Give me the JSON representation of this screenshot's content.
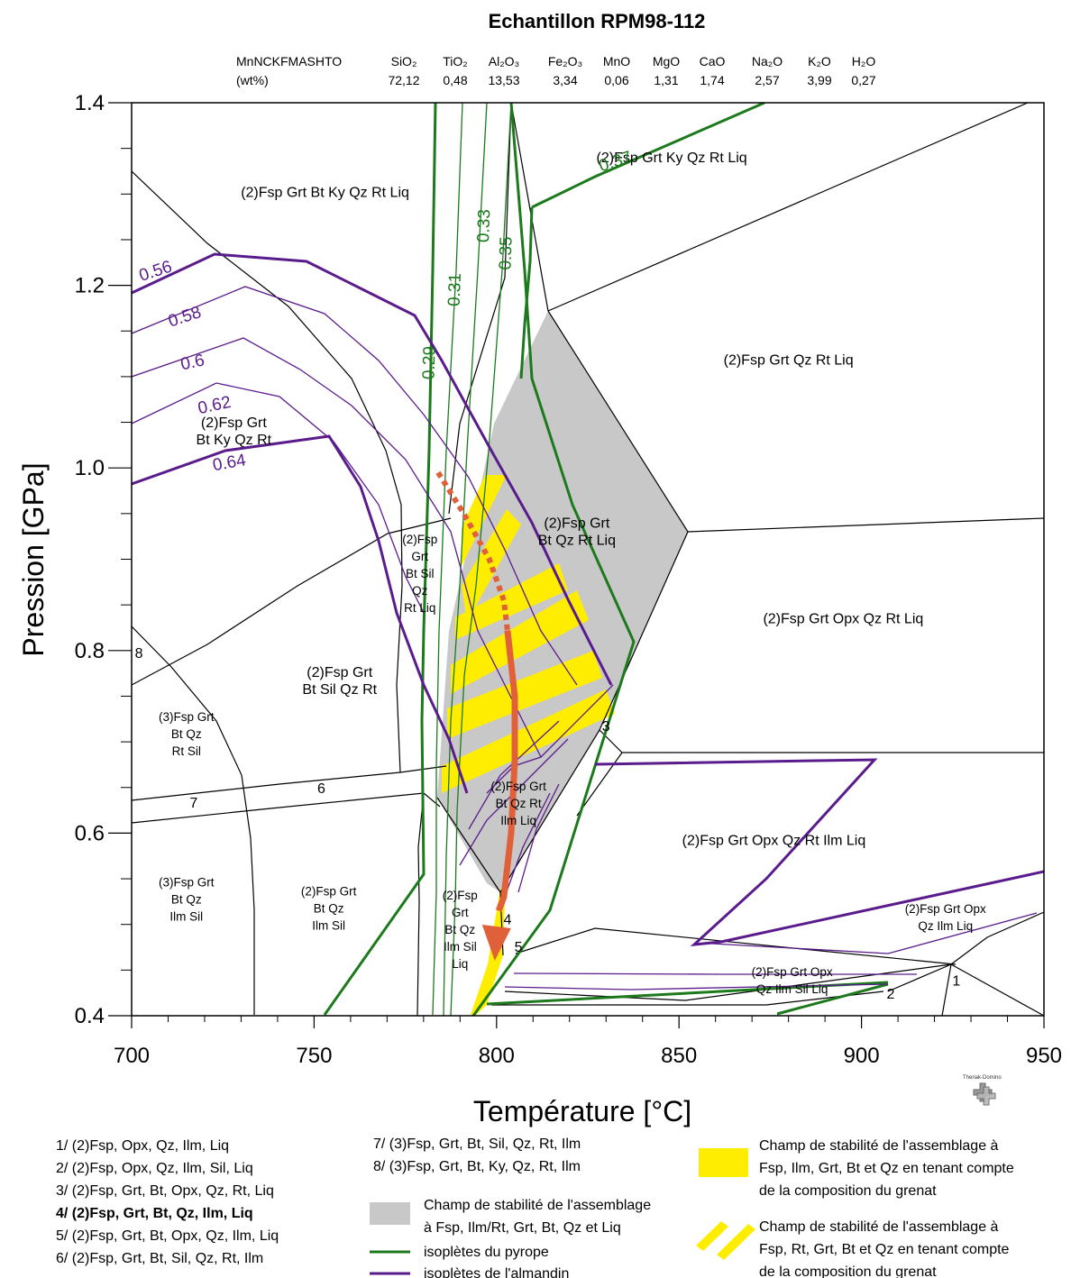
{
  "chart_data": {
    "type": "phase-diagram",
    "title": "Echantillon RPM98-112",
    "composition": {
      "system": "MnNCKFMASHTO",
      "unit": "(wt%)",
      "oxides": [
        {
          "name": "SiO₂",
          "value": "72,12"
        },
        {
          "name": "TiO₂",
          "value": "0,48"
        },
        {
          "name": "Al₂O₃",
          "value": "13,53"
        },
        {
          "name": "Fe₂O₃",
          "value": "3,34"
        },
        {
          "name": "MnO",
          "value": "0,06"
        },
        {
          "name": "MgO",
          "value": "1,31"
        },
        {
          "name": "CaO",
          "value": "1,74"
        },
        {
          "name": "Na₂O",
          "value": "2,57"
        },
        {
          "name": "K₂O",
          "value": "3,99"
        },
        {
          "name": "H₂O",
          "value": "0,27"
        }
      ]
    },
    "xlabel": "Température [°C]",
    "ylabel": "Pression [GPa]",
    "xlim": [
      700,
      950
    ],
    "ylim": [
      0.4,
      1.4
    ],
    "xticks": [
      700,
      750,
      800,
      850,
      900,
      950
    ],
    "yticks": [
      0.4,
      0.6,
      0.8,
      1.0,
      1.2,
      1.4
    ],
    "xtick_labels": [
      "700",
      "750",
      "800",
      "850",
      "900",
      "950"
    ],
    "ytick_labels": [
      "0.4",
      "0.6",
      "0.8",
      "1.0",
      "1.2",
      "1.4"
    ],
    "fields": [
      {
        "label": "(2)Fsp Grt Bt Ky Qz Rt Liq",
        "T": 753,
        "P": 1.297
      },
      {
        "label": "(2)Fsp Grt Ky Qz Rt Liq",
        "T": 848,
        "P": 1.335
      },
      {
        "label": "(2)Fsp Grt Qz Rt Liq",
        "T": 880,
        "P": 1.113
      },
      {
        "label": "(2)Fsp Grt Opx Qz Rt Liq",
        "T": 895,
        "P": 0.83
      },
      {
        "label": "(2)Fsp Grt Opx Qz Rt Ilm Liq",
        "T": 876,
        "P": 0.587
      }
    ],
    "small_fields": [
      {
        "lines": [
          "(2)Fsp Grt",
          "Bt Ky Qz Rt"
        ],
        "T": 728,
        "P": 1.035
      },
      {
        "lines": [
          "(2)Fsp Grt",
          "Bt Qz Rt Liq"
        ],
        "T": 822,
        "P": 0.925
      },
      {
        "lines": [
          "(2)Fsp",
          "Grt",
          "Bt Sil",
          "Qz",
          "Rt Liq"
        ],
        "T": 779,
        "P": 0.88
      },
      {
        "lines": [
          "(2)Fsp Grt",
          "Bt Sil Qz Rt"
        ],
        "T": 757,
        "P": 0.762
      },
      {
        "lines": [
          "(3)Fsp Grt",
          "Bt Qz",
          "Rt Sil"
        ],
        "T": 715,
        "P": 0.704
      },
      {
        "lines": [
          "(2)Fsp Grt",
          "Bt Qz Rt",
          "Ilm Liq"
        ],
        "T": 806,
        "P": 0.628
      },
      {
        "lines": [
          "(3)Fsp Grt",
          "Bt Qz",
          "Ilm Sil"
        ],
        "T": 715,
        "P": 0.523
      },
      {
        "lines": [
          "(2)Fsp Grt",
          "Bt Qz",
          "Ilm Sil"
        ],
        "T": 754,
        "P": 0.513
      },
      {
        "lines": [
          "(2)Fsp",
          "Grt",
          "Bt Qz",
          "Ilm Sil",
          "Liq"
        ],
        "T": 790,
        "P": 0.49
      },
      {
        "lines": [
          "(2)Fsp Grt Opx",
          "Qz Ilm Liq"
        ],
        "T": 923,
        "P": 0.503
      },
      {
        "lines": [
          "(2)Fsp Grt Opx",
          "Qz Ilm Sil Liq"
        ],
        "T": 881,
        "P": 0.434
      }
    ],
    "numbers": [
      {
        "label": "1",
        "T": 926,
        "P": 0.433
      },
      {
        "label": "2",
        "T": 908,
        "P": 0.419
      },
      {
        "label": "3",
        "T": 830,
        "P": 0.712
      },
      {
        "label": "4",
        "T": 803,
        "P": 0.5
      },
      {
        "label": "5",
        "T": 806,
        "P": 0.47
      },
      {
        "label": "6",
        "T": 752,
        "P": 0.644
      },
      {
        "label": "7",
        "T": 717,
        "P": 0.628
      },
      {
        "label": "8",
        "T": 702,
        "P": 0.792
      }
    ],
    "series": [
      {
        "name": "isoplètes du pyrope",
        "color": "#1c7a1c",
        "labels": [
          {
            "text": "0.29",
            "T": 783,
            "P": 1.115,
            "rot": -88
          },
          {
            "text": "0.31",
            "T": 790,
            "P": 1.195,
            "rot": -88
          },
          {
            "text": "0.33",
            "T": 798,
            "P": 1.265,
            "rot": -88
          },
          {
            "text": "0.35",
            "T": 804,
            "P": 1.235,
            "rot": -88
          },
          {
            "text": "0.37",
            "T": 833,
            "P": 1.33,
            "rot": -18
          }
        ]
      },
      {
        "name": "isoplètes de l'almandin",
        "color": "#5a1c8c",
        "labels": [
          {
            "text": "0.56",
            "T": 707,
            "P": 1.21,
            "rot": -18
          },
          {
            "text": "0.58",
            "T": 715,
            "P": 1.16,
            "rot": -18
          },
          {
            "text": "0.6",
            "T": 717,
            "P": 1.11,
            "rot": -12
          },
          {
            "text": "0.62",
            "T": 723,
            "P": 1.063,
            "rot": -12
          },
          {
            "text": "0.64",
            "T": 727,
            "P": 1.0,
            "rot": -10
          }
        ]
      }
    ],
    "pt_path": {
      "color": "#e0603a",
      "dotted": [
        [
          784,
          0.995
        ],
        [
          791,
          0.95
        ],
        [
          798,
          0.9
        ],
        [
          802,
          0.855
        ],
        [
          803,
          0.822
        ]
      ],
      "solid": [
        [
          803,
          0.822
        ],
        [
          805,
          0.75
        ],
        [
          805,
          0.68
        ],
        [
          804,
          0.6
        ],
        [
          802,
          0.53
        ],
        [
          800,
          0.48
        ]
      ]
    }
  },
  "legend": {
    "numbered": [
      {
        "text": "1/ (2)Fsp, Opx, Qz, Ilm, Liq",
        "bold": false
      },
      {
        "text": "2/ (2)Fsp, Opx, Qz, Ilm, Sil, Liq",
        "bold": false
      },
      {
        "text": "3/ (2)Fsp, Grt, Bt, Opx, Qz, Rt, Liq",
        "bold": false
      },
      {
        "text": "4/ (2)Fsp, Grt, Bt, Qz, Ilm, Liq",
        "bold": true
      },
      {
        "text": "5/ (2)Fsp, Grt, Bt, Opx, Qz, Ilm, Liq",
        "bold": false
      },
      {
        "text": "6/ (2)Fsp, Grt, Bt, Sil, Qz, Rt, Ilm",
        "bold": false
      }
    ],
    "numbered2": [
      {
        "text": "7/ (3)Fsp, Grt, Bt, Sil, Qz, Rt, Ilm"
      },
      {
        "text": "8/ (3)Fsp, Grt, Bt, Ky, Qz, Rt, Ilm"
      }
    ],
    "gray_lines": [
      "Champ de stabilité de l'assemblage",
      "à Fsp, Ilm/Rt, Grt, Bt, Qz et Liq"
    ],
    "pyrope": "isoplètes du pyrope",
    "almandin": "isoplètes de l'almandin",
    "yellow_lines": [
      "Champ de stabilité de l'assemblage à",
      "Fsp, Ilm, Grt, Bt et Qz en tenant compte",
      "de la composition du grenat"
    ],
    "stripe_lines": [
      "Champ de stabilité de l'assemblage à",
      "Fsp, Rt, Grt, Bt et Qz en tenant compte",
      "de la composition du grenat"
    ],
    "gray_color": "#c8c8c8",
    "yellow_color": "#ffed00"
  },
  "logo": {
    "text": "Theriak-Domino"
  }
}
